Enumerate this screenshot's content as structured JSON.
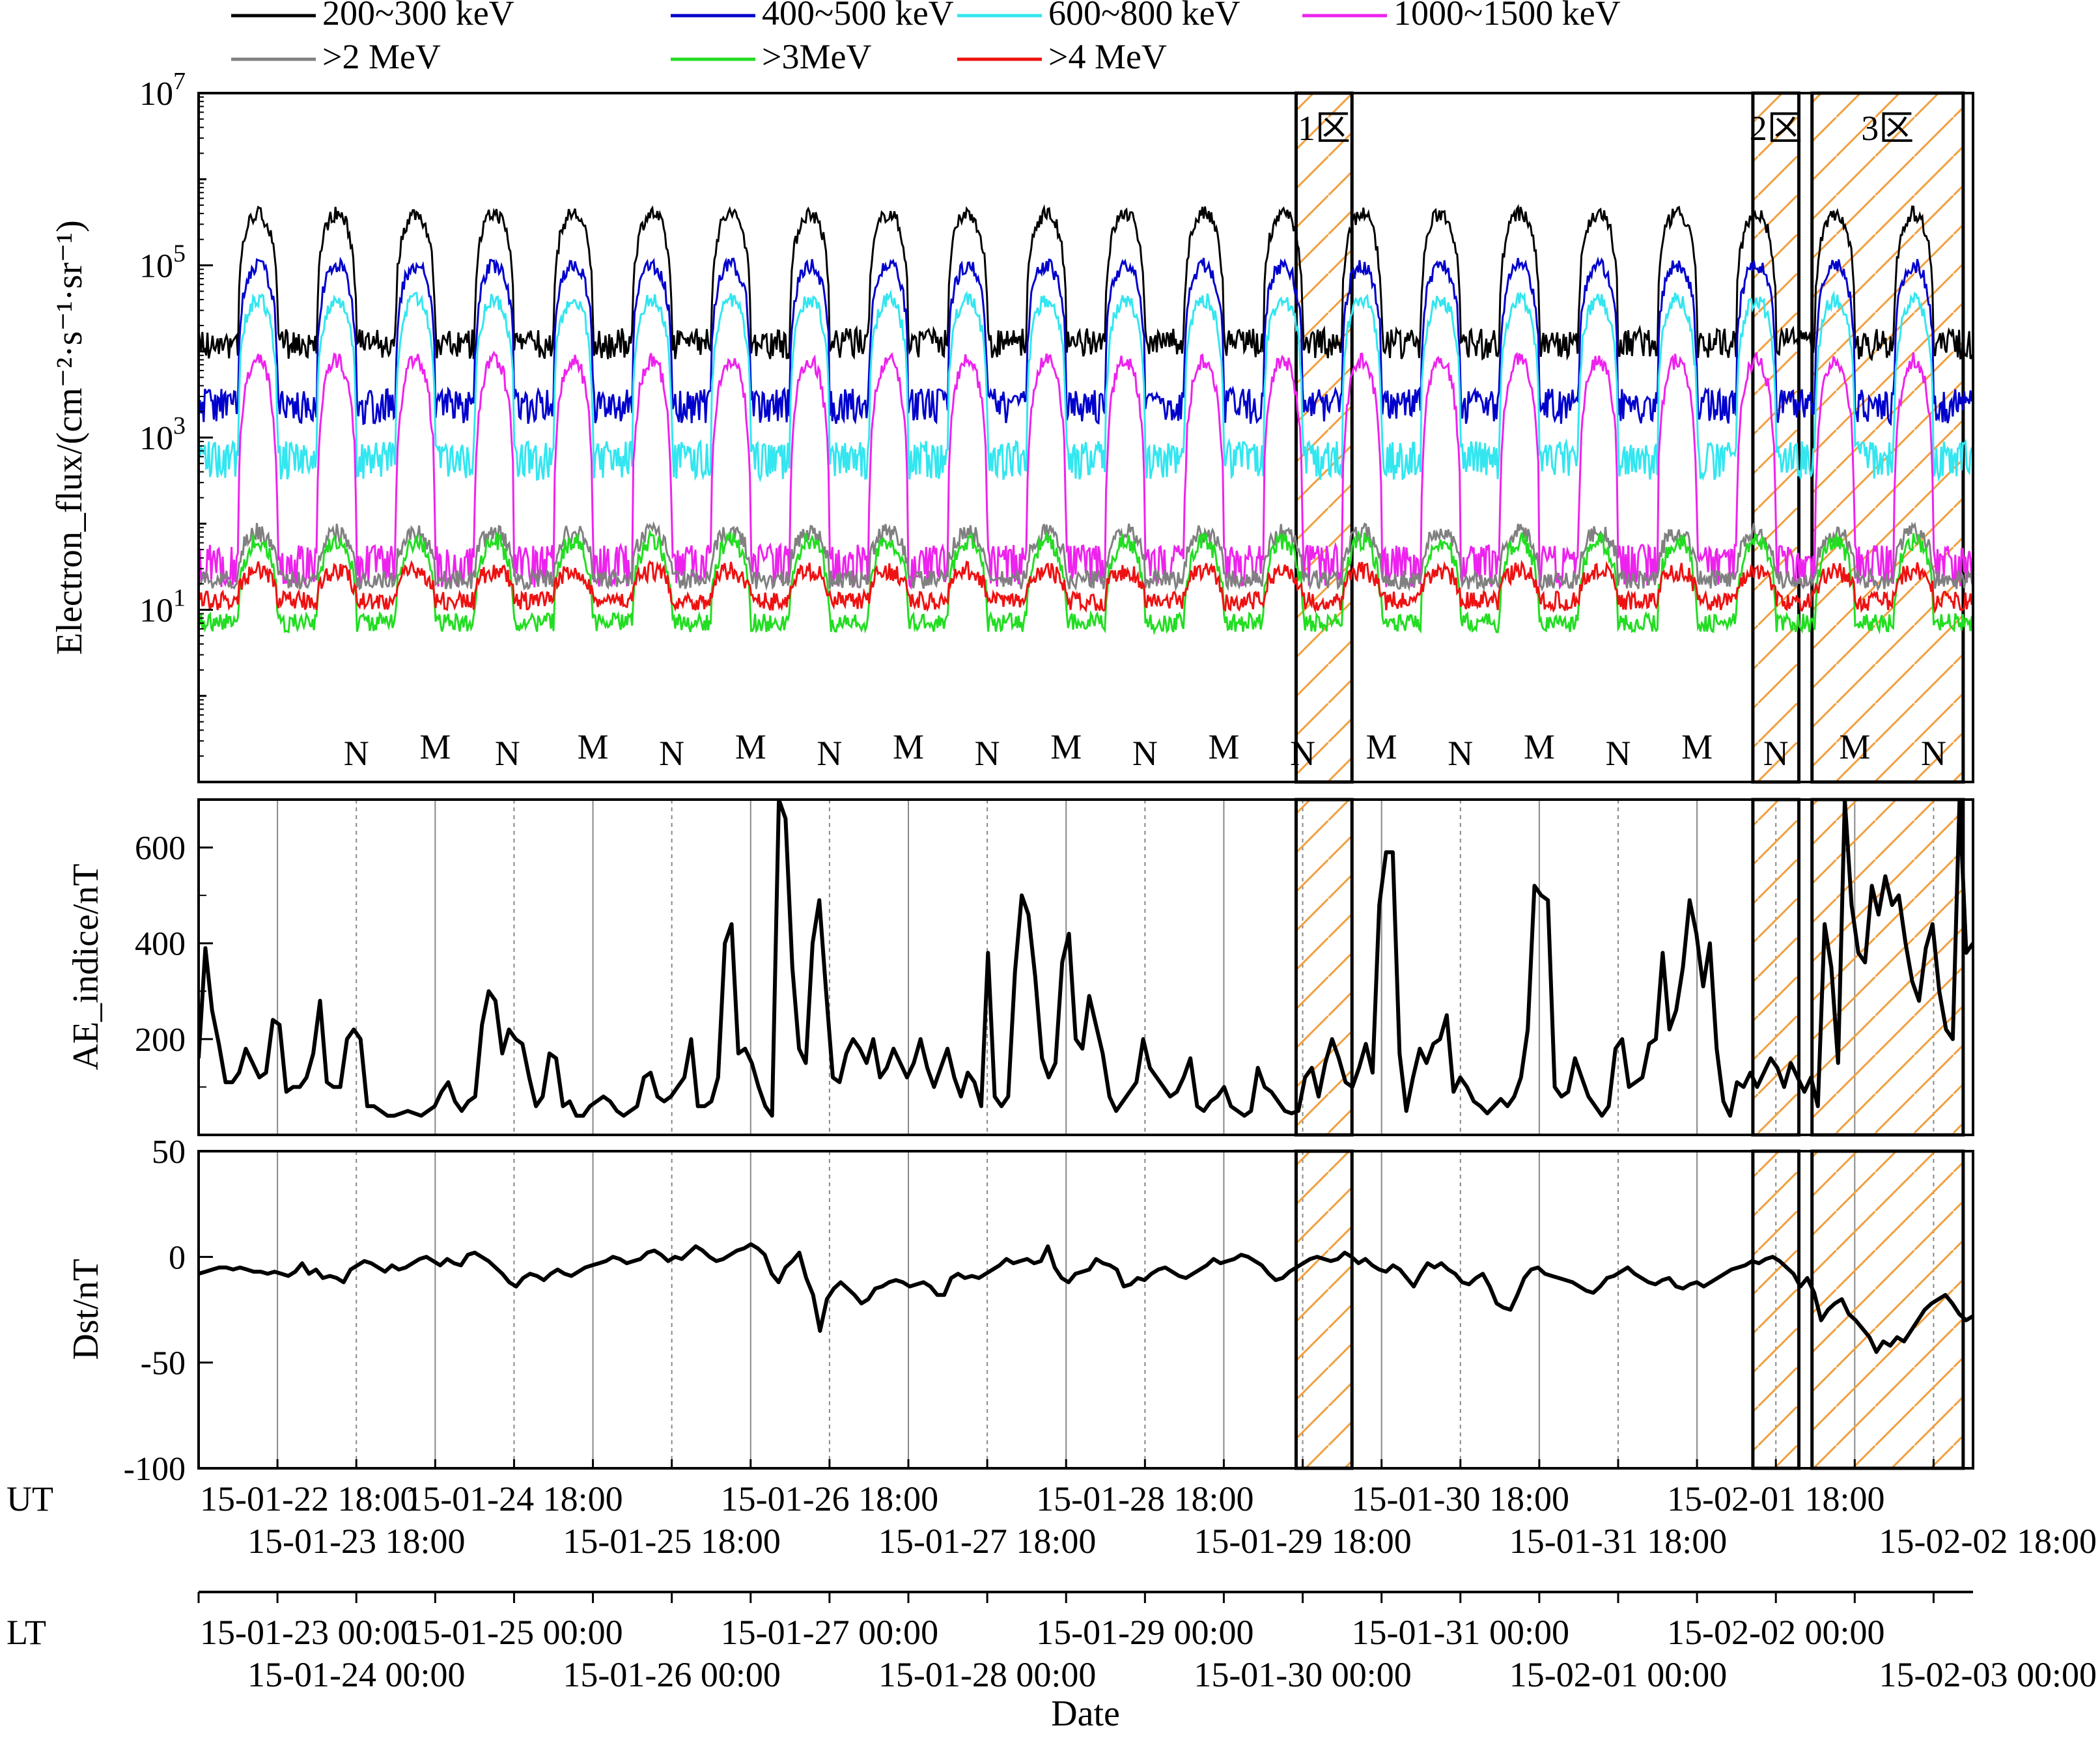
{
  "chart_data": {
    "type": "line",
    "xlabel": "Date",
    "time_axis": {
      "start": "2015-01-22T18:00",
      "end": "2015-02-03T00:00",
      "ut_prefix": "UT",
      "lt_prefix": "LT",
      "ut_row1": [
        {
          "t": "2015-01-22T18:00",
          "label": "15-01-22 18:00"
        },
        {
          "t": "2015-01-24T18:00",
          "label": "15-01-24 18:00"
        },
        {
          "t": "2015-01-26T18:00",
          "label": "15-01-26 18:00"
        },
        {
          "t": "2015-01-28T18:00",
          "label": "15-01-28 18:00"
        },
        {
          "t": "2015-01-30T18:00",
          "label": "15-01-30 18:00"
        },
        {
          "t": "2015-02-01T18:00",
          "label": "15-02-01 18:00"
        }
      ],
      "ut_row2": [
        {
          "t": "2015-01-23T18:00",
          "label": "15-01-23 18:00"
        },
        {
          "t": "2015-01-25T18:00",
          "label": "15-01-25 18:00"
        },
        {
          "t": "2015-01-27T18:00",
          "label": "15-01-27 18:00"
        },
        {
          "t": "2015-01-29T18:00",
          "label": "15-01-29 18:00"
        },
        {
          "t": "2015-01-31T18:00",
          "label": "15-01-31 18:00"
        },
        {
          "t": "2015-02-02T18:00",
          "label": "15-02-02 18:00"
        }
      ],
      "lt_row1": [
        {
          "t": "2015-01-22T18:00",
          "label": "15-01-23 00:00"
        },
        {
          "t": "2015-01-24T18:00",
          "label": "15-01-25 00:00"
        },
        {
          "t": "2015-01-26T18:00",
          "label": "15-01-27 00:00"
        },
        {
          "t": "2015-01-28T18:00",
          "label": "15-01-29 00:00"
        },
        {
          "t": "2015-01-30T18:00",
          "label": "15-01-31 00:00"
        },
        {
          "t": "2015-02-01T18:00",
          "label": "15-02-02 00:00"
        }
      ],
      "lt_row2": [
        {
          "t": "2015-01-23T18:00",
          "label": "15-01-24 00:00"
        },
        {
          "t": "2015-01-25T18:00",
          "label": "15-01-26 00:00"
        },
        {
          "t": "2015-01-27T18:00",
          "label": "15-01-28 00:00"
        },
        {
          "t": "2015-01-29T18:00",
          "label": "15-01-30 00:00"
        },
        {
          "t": "2015-01-31T18:00",
          "label": "15-02-01 00:00"
        },
        {
          "t": "2015-02-02T18:00",
          "label": "15-02-03 00:00"
        }
      ]
    },
    "legend": {
      "placement": "top",
      "entries": [
        {
          "name": "200~300 keV",
          "color": "#000000"
        },
        {
          "name": "400~500 keV",
          "color": "#0000cc"
        },
        {
          "name": "600~800 keV",
          "color": "#33e6f0"
        },
        {
          "name": "1000~1500 keV",
          "color": "#ee22ee"
        },
        {
          "name": ">2 MeV",
          "color": "#808080"
        },
        {
          "name": ">3MeV",
          "color": "#22dd22"
        },
        {
          "name": ">4 MeV",
          "color": "#ee1111"
        }
      ]
    },
    "regions": [
      {
        "label": "1区",
        "start": "2015-01-29T17:00",
        "end": "2015-01-30T01:30"
      },
      {
        "label": "2区",
        "start": "2015-02-01T14:30",
        "end": "2015-02-01T21:30"
      },
      {
        "label": "3区",
        "start": "2015-02-01T23:30",
        "end": "2015-02-02T22:30"
      }
    ],
    "region_color": "#f0a040",
    "panels": [
      {
        "name": "electron-flux",
        "ylabel": "Electron_flux/(cm⁻²·s⁻¹·sr⁻¹)",
        "scale": "log",
        "ylim_exp": [
          -1,
          7
        ],
        "yticks": [
          {
            "exp": 1,
            "base": "10",
            "sup": "1"
          },
          {
            "exp": 3,
            "base": "10",
            "sup": "3"
          },
          {
            "exp": 5,
            "base": "10",
            "sup": "5"
          },
          {
            "exp": 7,
            "base": "10",
            "sup": "7"
          }
        ],
        "orbit_labels": [
          {
            "t": "2015-01-23T18:00",
            "label": "N"
          },
          {
            "t": "2015-01-24T06:00",
            "label": "M"
          },
          {
            "t": "2015-01-24T17:00",
            "label": "N"
          },
          {
            "t": "2015-01-25T06:00",
            "label": "M"
          },
          {
            "t": "2015-01-25T18:00",
            "label": "N"
          },
          {
            "t": "2015-01-26T06:00",
            "label": "M"
          },
          {
            "t": "2015-01-26T18:00",
            "label": "N"
          },
          {
            "t": "2015-01-27T06:00",
            "label": "M"
          },
          {
            "t": "2015-01-27T18:00",
            "label": "N"
          },
          {
            "t": "2015-01-28T06:00",
            "label": "M"
          },
          {
            "t": "2015-01-28T18:00",
            "label": "N"
          },
          {
            "t": "2015-01-29T06:00",
            "label": "M"
          },
          {
            "t": "2015-01-29T18:00",
            "label": "N"
          },
          {
            "t": "2015-01-30T06:00",
            "label": "M"
          },
          {
            "t": "2015-01-30T18:00",
            "label": "N"
          },
          {
            "t": "2015-01-31T06:00",
            "label": "M"
          },
          {
            "t": "2015-01-31T18:00",
            "label": "N"
          },
          {
            "t": "2015-02-01T06:00",
            "label": "M"
          },
          {
            "t": "2015-02-01T18:00",
            "label": "N"
          },
          {
            "t": "2015-02-02T06:00",
            "label": "M"
          },
          {
            "t": "2015-02-02T18:00",
            "label": "N"
          }
        ],
        "channel_envelope_log10": {
          "200~300 keV": {
            "peak": 5.6,
            "trough": 4.6
          },
          "400~500 keV": {
            "peak": 5.0,
            "trough": 4.0
          },
          "600~800 keV": {
            "peak": 4.6,
            "trough": 3.5
          },
          "1000~1500 keV": {
            "peak": 3.9,
            "trough": 2.4
          },
          ">2 MeV": {
            "peak": 1.9,
            "trough": 1.35
          },
          ">3MeV": {
            "peak": 1.8,
            "trough": 0.85
          },
          ">4 MeV": {
            "peak": 1.45,
            "trough": 1.1
          }
        }
      },
      {
        "name": "ae-index",
        "ylabel": "AE_indice/nT",
        "ylim": [
          0,
          700
        ],
        "yticks": [
          200,
          400,
          600
        ],
        "values": [
          160,
          390,
          260,
          190,
          110,
          110,
          130,
          180,
          150,
          120,
          130,
          240,
          230,
          90,
          100,
          100,
          120,
          170,
          280,
          110,
          100,
          100,
          200,
          220,
          200,
          60,
          60,
          50,
          40,
          40,
          45,
          50,
          45,
          40,
          50,
          60,
          90,
          110,
          70,
          50,
          70,
          80,
          230,
          300,
          280,
          170,
          220,
          200,
          190,
          120,
          60,
          80,
          170,
          160,
          60,
          70,
          40,
          40,
          60,
          70,
          80,
          70,
          50,
          40,
          50,
          60,
          120,
          130,
          80,
          70,
          80,
          100,
          120,
          200,
          60,
          60,
          70,
          120,
          400,
          440,
          170,
          180,
          150,
          100,
          60,
          40,
          700,
          660,
          350,
          180,
          150,
          400,
          490,
          300,
          120,
          110,
          170,
          200,
          180,
          150,
          200,
          120,
          140,
          180,
          150,
          120,
          150,
          200,
          140,
          100,
          140,
          180,
          120,
          80,
          130,
          110,
          60,
          380,
          80,
          60,
          80,
          340,
          500,
          460,
          330,
          160,
          120,
          150,
          360,
          420,
          200,
          180,
          290,
          230,
          170,
          80,
          50,
          70,
          90,
          110,
          200,
          140,
          120,
          100,
          80,
          90,
          120,
          160,
          60,
          50,
          70,
          80,
          100,
          60,
          50,
          40,
          50,
          140,
          100,
          90,
          70,
          50,
          45,
          50,
          120,
          140,
          80,
          150,
          200,
          160,
          110,
          100,
          140,
          190,
          130,
          480,
          590,
          590,
          170,
          50,
          120,
          180,
          150,
          190,
          200,
          250,
          90,
          120,
          100,
          70,
          60,
          45,
          60,
          75,
          60,
          80,
          120,
          220,
          520,
          500,
          490,
          100,
          80,
          90,
          160,
          120,
          80,
          60,
          40,
          60,
          180,
          200,
          100,
          110,
          120,
          190,
          200,
          380,
          220,
          260,
          350,
          490,
          420,
          310,
          400,
          180,
          70,
          40,
          110,
          100,
          130,
          100,
          130,
          160,
          140,
          100,
          150,
          120,
          90,
          120,
          60,
          440,
          350,
          150,
          700,
          480,
          380,
          360,
          520,
          460,
          540,
          480,
          500,
          400,
          320,
          280,
          390,
          440,
          300,
          220,
          200,
          700,
          380,
          400
        ],
        "x_start": "2015-01-22T18:00",
        "x_step_minutes": 60
      },
      {
        "name": "dst-index",
        "ylabel": "Dst/nT",
        "ylim": [
          -100,
          50
        ],
        "yticks": [
          50,
          0,
          -50,
          -100
        ],
        "values": [
          -8,
          -7,
          -6,
          -5,
          -5,
          -6,
          -5,
          -6,
          -7,
          -7,
          -8,
          -7,
          -8,
          -9,
          -7,
          -3,
          -8,
          -6,
          -10,
          -9,
          -10,
          -12,
          -6,
          -4,
          -2,
          -3,
          -5,
          -7,
          -4,
          -6,
          -5,
          -3,
          -1,
          0,
          -2,
          -4,
          -1,
          -3,
          -4,
          1,
          2,
          0,
          -2,
          -5,
          -8,
          -12,
          -14,
          -10,
          -8,
          -9,
          -11,
          -8,
          -6,
          -8,
          -9,
          -7,
          -5,
          -4,
          -3,
          -2,
          0,
          -1,
          -3,
          -2,
          -1,
          2,
          3,
          1,
          -2,
          0,
          -1,
          2,
          5,
          3,
          0,
          -2,
          -1,
          1,
          3,
          4,
          6,
          4,
          1,
          -8,
          -12,
          -5,
          -2,
          2,
          -10,
          -18,
          -35,
          -20,
          -15,
          -12,
          -15,
          -18,
          -22,
          -20,
          -15,
          -14,
          -12,
          -11,
          -12,
          -14,
          -13,
          -12,
          -14,
          -18,
          -18,
          -10,
          -8,
          -10,
          -9,
          -10,
          -8,
          -6,
          -4,
          -1,
          -3,
          -2,
          -1,
          -3,
          -2,
          5,
          -5,
          -10,
          -12,
          -8,
          -7,
          -6,
          -1,
          -3,
          -4,
          -6,
          -14,
          -13,
          -10,
          -11,
          -8,
          -6,
          -5,
          -7,
          -9,
          -10,
          -8,
          -6,
          -4,
          -1,
          -3,
          -2,
          -1,
          1,
          0,
          -2,
          -4,
          -8,
          -11,
          -10,
          -7,
          -5,
          -3,
          -1,
          0,
          -1,
          -2,
          -1,
          2,
          0,
          -3,
          -1,
          -4,
          -6,
          -7,
          -4,
          -6,
          -10,
          -14,
          -8,
          -3,
          -5,
          -3,
          -6,
          -8,
          -12,
          -13,
          -10,
          -8,
          -14,
          -22,
          -24,
          -25,
          -18,
          -10,
          -6,
          -5,
          -8,
          -9,
          -10,
          -11,
          -12,
          -14,
          -16,
          -17,
          -14,
          -10,
          -9,
          -7,
          -5,
          -8,
          -10,
          -12,
          -13,
          -11,
          -10,
          -14,
          -15,
          -13,
          -12,
          -14,
          -12,
          -10,
          -8,
          -6,
          -5,
          -4,
          -2,
          -3,
          -1,
          0,
          -2,
          -5,
          -8,
          -14,
          -10,
          -17,
          -30,
          -25,
          -22,
          -20,
          -27,
          -30,
          -34,
          -38,
          -45,
          -40,
          -42,
          -38,
          -40,
          -35,
          -30,
          -25,
          -22,
          -20,
          -18,
          -22,
          -27,
          -30,
          -28
        ],
        "x_start": "2015-01-22T18:00",
        "x_step_minutes": 60
      }
    ]
  }
}
